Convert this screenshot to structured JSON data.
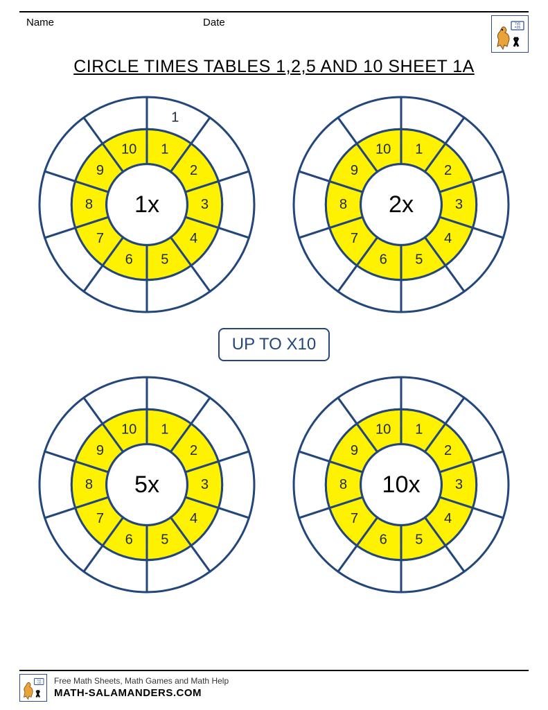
{
  "header": {
    "name_label": "Name",
    "date_label": "Date",
    "title": "CIRCLE TIMES TABLES 1,2,5 AND 10 SHEET 1A"
  },
  "center_badge": "UP TO X10",
  "wheel_style": {
    "outer_radius": 154,
    "mid_radius": 108,
    "inner_radius": 58,
    "line_color": "#23467c",
    "line_width": 3,
    "inner_ring_fill": "#fff200",
    "outer_ring_fill": "#ffffff",
    "center_fill": "#ffffff",
    "segments": 10,
    "start_angle_deg": -90,
    "inner_numbers": [
      "1",
      "2",
      "3",
      "4",
      "5",
      "6",
      "7",
      "8",
      "9",
      "10"
    ],
    "inner_label_radius": 83,
    "outer_label_radius": 131
  },
  "wheels": [
    {
      "center_label": "1x",
      "outer_values": [
        "1",
        "",
        "",
        "",
        "",
        "",
        "",
        "",
        "",
        ""
      ]
    },
    {
      "center_label": "2x",
      "outer_values": [
        "",
        "",
        "",
        "",
        "",
        "",
        "",
        "",
        "",
        ""
      ]
    },
    {
      "center_label": "5x",
      "outer_values": [
        "",
        "",
        "",
        "",
        "",
        "",
        "",
        "",
        "",
        ""
      ]
    },
    {
      "center_label": "10x",
      "outer_values": [
        "",
        "",
        "",
        "",
        "",
        "",
        "",
        "",
        "",
        ""
      ]
    }
  ],
  "footer": {
    "tagline": "Free Math Sheets, Math Games and Math Help",
    "url": "MATH-SALAMANDERS.COM"
  }
}
